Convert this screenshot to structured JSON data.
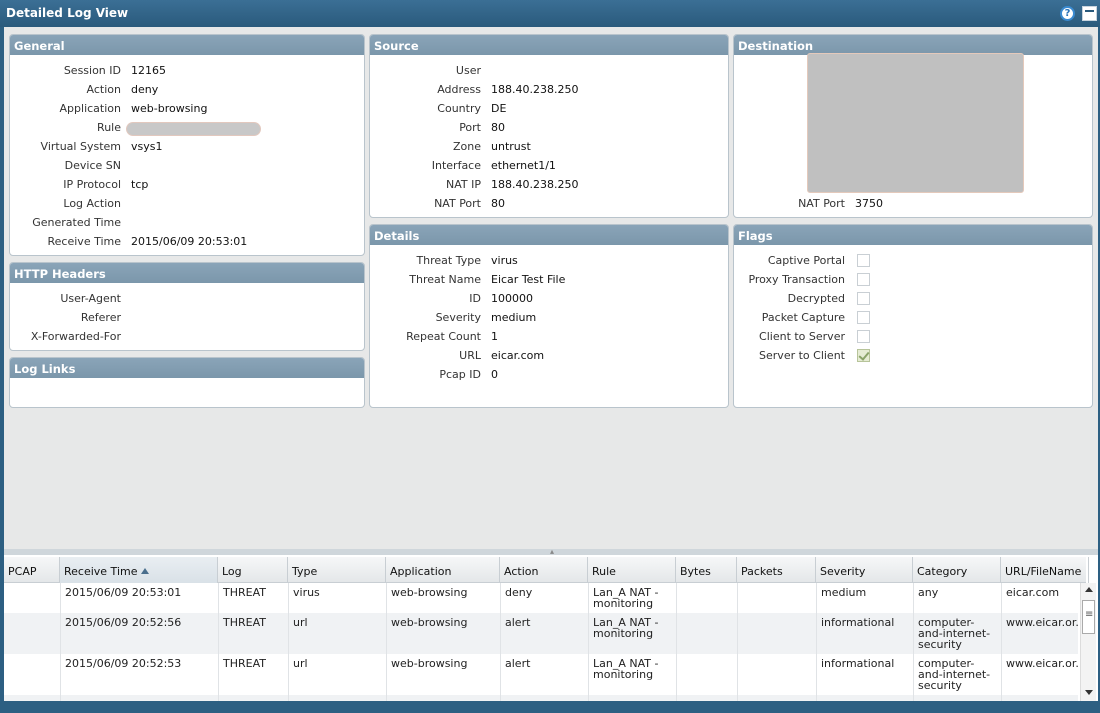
{
  "window": {
    "title": "Detailed Log View",
    "help_icon": "?"
  },
  "general": {
    "header": "General",
    "fields": [
      {
        "label": "Session ID",
        "value": "12165"
      },
      {
        "label": "Action",
        "value": "deny"
      },
      {
        "label": "Application",
        "value": "web-browsing"
      },
      {
        "label": "Rule",
        "value": ""
      },
      {
        "label": "Virtual System",
        "value": "vsys1"
      },
      {
        "label": "Device SN",
        "value": ""
      },
      {
        "label": "IP Protocol",
        "value": "tcp"
      },
      {
        "label": "Log Action",
        "value": ""
      },
      {
        "label": "Generated Time",
        "value": ""
      },
      {
        "label": "Receive Time",
        "value": "2015/06/09 20:53:01"
      }
    ]
  },
  "http_headers": {
    "header": "HTTP Headers",
    "fields": [
      {
        "label": "User-Agent",
        "value": ""
      },
      {
        "label": "Referer",
        "value": ""
      },
      {
        "label": "X-Forwarded-For",
        "value": ""
      }
    ]
  },
  "log_links": {
    "header": "Log Links"
  },
  "source": {
    "header": "Source",
    "fields": [
      {
        "label": "User",
        "value": ""
      },
      {
        "label": "Address",
        "value": "188.40.238.250"
      },
      {
        "label": "Country",
        "value": "DE"
      },
      {
        "label": "Port",
        "value": "80"
      },
      {
        "label": "Zone",
        "value": "untrust"
      },
      {
        "label": "Interface",
        "value": "ethernet1/1"
      },
      {
        "label": "NAT IP",
        "value": "188.40.238.250"
      },
      {
        "label": "NAT Port",
        "value": "80"
      }
    ]
  },
  "destination": {
    "header": "Destination",
    "fields": [
      {
        "label": "NAT Port",
        "value": "3750"
      }
    ]
  },
  "details": {
    "header": "Details",
    "fields": [
      {
        "label": "Threat Type",
        "value": "virus"
      },
      {
        "label": "Threat Name",
        "value": "Eicar Test File"
      },
      {
        "label": "ID",
        "value": "100000"
      },
      {
        "label": "Severity",
        "value": "medium"
      },
      {
        "label": "Repeat Count",
        "value": "1"
      },
      {
        "label": "URL",
        "value": "eicar.com"
      },
      {
        "label": "Pcap ID",
        "value": "0"
      }
    ]
  },
  "flags": {
    "header": "Flags",
    "items": [
      {
        "label": "Captive Portal",
        "checked": false
      },
      {
        "label": "Proxy Transaction",
        "checked": false
      },
      {
        "label": "Decrypted",
        "checked": false
      },
      {
        "label": "Packet Capture",
        "checked": false
      },
      {
        "label": "Client to Server",
        "checked": false
      },
      {
        "label": "Server to Client",
        "checked": true
      }
    ]
  },
  "table": {
    "columns": [
      "PCAP",
      "Receive Time",
      "Log",
      "Type",
      "Application",
      "Action",
      "Rule",
      "Bytes",
      "Packets",
      "Severity",
      "Category",
      "URL/FileName"
    ],
    "sorted_column": "Receive Time",
    "rows": [
      {
        "pcap": "",
        "receive_time": "2015/06/09 20:53:01",
        "log": "THREAT",
        "type": "virus",
        "application": "web-browsing",
        "action": "deny",
        "rule": "Lan_A NAT - monitoring",
        "bytes": "",
        "packets": "",
        "severity": "medium",
        "category": "any",
        "url": "eicar.com"
      },
      {
        "pcap": "",
        "receive_time": "2015/06/09 20:52:56",
        "log": "THREAT",
        "type": "url",
        "application": "web-browsing",
        "action": "alert",
        "rule": "Lan_A NAT - monitoring",
        "bytes": "",
        "packets": "",
        "severity": "informational",
        "category": "computer-and-internet-security",
        "url": "www.eicar.or.."
      },
      {
        "pcap": "",
        "receive_time": "2015/06/09 20:52:53",
        "log": "THREAT",
        "type": "url",
        "application": "web-browsing",
        "action": "alert",
        "rule": "Lan_A NAT - monitoring",
        "bytes": "",
        "packets": "",
        "severity": "informational",
        "category": "computer-and-internet-security",
        "url": "www.eicar.or.."
      }
    ]
  }
}
